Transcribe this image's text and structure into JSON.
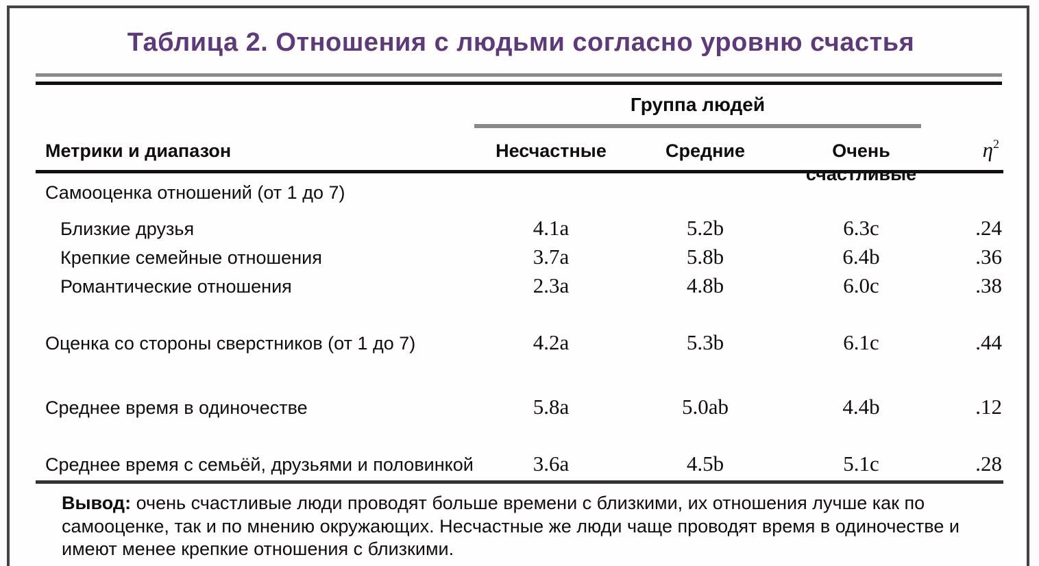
{
  "figure": {
    "title": "Таблица 2. Отношения с людьми согласно уровню счастья"
  },
  "table": {
    "group_header": "Группа людей",
    "stub_header": "Метрики и диапазон",
    "group_columns": [
      "Несчастные",
      "Средние",
      "Очень счастливые"
    ],
    "effect_column": {
      "symbol": "η",
      "superscript": "2"
    },
    "rows": [
      {
        "label": "Самооценка отношений (от 1 до 7)",
        "indent": false,
        "values": [
          "",
          "",
          "",
          ""
        ]
      },
      {
        "label": "Близкие друзья",
        "indent": true,
        "values": [
          "4.1a",
          "5.2b",
          "6.3c",
          ".24"
        ]
      },
      {
        "label": "Крепкие семейные отношения",
        "indent": true,
        "values": [
          "3.7a",
          "5.8b",
          "6.4b",
          ".36"
        ]
      },
      {
        "label": "Романтические отношения",
        "indent": true,
        "values": [
          "2.3a",
          "4.8b",
          "6.0c",
          ".38"
        ]
      },
      {
        "label": "Оценка со стороны сверстников (от 1 до 7)",
        "indent": false,
        "values": [
          "4.2a",
          "5.3b",
          "6.1c",
          ".44"
        ]
      },
      {
        "label": "Среднее время в одиночестве",
        "indent": false,
        "values": [
          "5.8a",
          "5.0ab",
          "4.4b",
          ".12"
        ]
      },
      {
        "label": "Среднее время с семьёй, друзьями и половинкой",
        "indent": false,
        "values": [
          "3.6a",
          "4.5b",
          "5.1c",
          ".28"
        ]
      }
    ]
  },
  "note": {
    "lead": "Вывод:",
    "body": " очень счастливые люди проводят больше времени с близкими, их отношения лучше как по самооценке, так и по мнению окружающих. Несчастные же люди чаще проводят время в одиночестве и имеют менее крепкие отношения с близкими."
  },
  "colors": {
    "title": "#5d3a78",
    "background": "#fffdfe",
    "frame_border": "#434345",
    "rule_gray": "#8a8a8c",
    "rule_black": "#101012",
    "rule_bottom": "#333335",
    "text": "#0e0e10"
  },
  "chart_data": {
    "type": "table",
    "title": "Таблица 2. Отношения с людьми согласно уровню счастья",
    "column_group": {
      "label": "Группа людей",
      "spans": [
        "Несчастные",
        "Средние",
        "Очень счастливые"
      ]
    },
    "columns": [
      "Метрики и диапазон",
      "Несчастные",
      "Средние",
      "Очень счастливые",
      "η2"
    ],
    "rows": [
      [
        "Самооценка отношений (от 1 до 7)",
        "",
        "",
        "",
        ""
      ],
      [
        "Близкие друзья",
        "4.1a",
        "5.2b",
        "6.3c",
        ".24"
      ],
      [
        "Крепкие семейные отношения",
        "3.7a",
        "5.8b",
        "6.4b",
        ".36"
      ],
      [
        "Романтические отношения",
        "2.3a",
        "4.8b",
        "6.0c",
        ".38"
      ],
      [
        "Оценка со стороны сверстников (от 1 до 7)",
        "4.2a",
        "5.3b",
        "6.1c",
        ".44"
      ],
      [
        "Среднее время в одиночестве",
        "5.8a",
        "5.0ab",
        "4.4b",
        ".12"
      ],
      [
        "Среднее время с семьёй, друзьями и половинкой",
        "3.6a",
        "4.5b",
        "5.1c",
        ".28"
      ]
    ],
    "note": "Вывод: очень счастливые люди проводят больше времени с близкими, их отношения лучше как по самооценке, так и по мнению окружающих. Несчастные же люди чаще проводят время в одиночестве и имеют менее крепкие отношения с близкими."
  }
}
